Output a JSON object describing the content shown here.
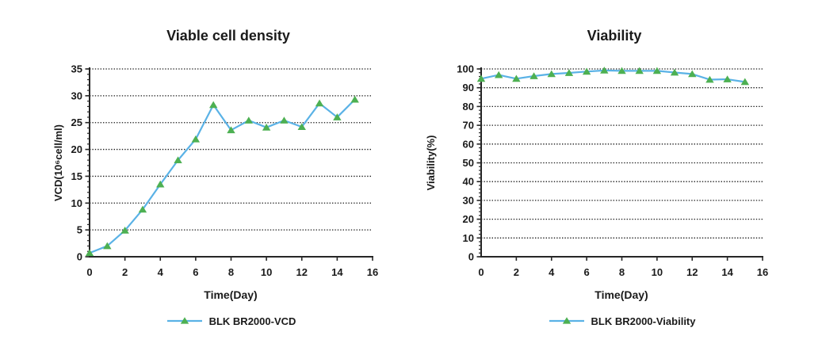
{
  "page": {
    "background": "#ffffff"
  },
  "colors": {
    "axis": "#262626",
    "grid": "#1a1a1a",
    "text": "#1a1a1a"
  },
  "chart_data": [
    {
      "type": "line",
      "title": "Viable cell density",
      "xlabel": "Time(Day)",
      "ylabel": "VCD(10⁶cell/ml)",
      "legend": "BLK BR2000-VCD",
      "x": [
        0,
        1,
        2,
        3,
        4,
        5,
        6,
        7,
        8,
        9,
        10,
        11,
        12,
        13,
        14,
        15
      ],
      "values": [
        0.7,
        2.0,
        4.9,
        8.8,
        13.5,
        18.0,
        21.9,
        28.3,
        23.6,
        25.4,
        24.1,
        25.4,
        24.2,
        28.6,
        26.0,
        29.3
      ],
      "xlim": [
        0,
        16
      ],
      "ylim": [
        0,
        35
      ],
      "xticks": [
        0,
        2,
        4,
        6,
        8,
        10,
        12,
        14,
        16
      ],
      "yticks": [
        0,
        5,
        10,
        15,
        20,
        25,
        30,
        35
      ],
      "y_minor_step": 1,
      "grid": "horizontal-dotted",
      "legend_position": "bottom",
      "line_color": "#5AB2E6",
      "marker_color": "#4DB052",
      "marker": "triangle-up"
    },
    {
      "type": "line",
      "title": "Viability",
      "xlabel": "Time(Day)",
      "ylabel": "Viability(%)",
      "legend": "BLK BR2000-Viability",
      "x": [
        0,
        1,
        2,
        3,
        4,
        5,
        6,
        7,
        8,
        9,
        10,
        11,
        12,
        13,
        14,
        15
      ],
      "values": [
        94.8,
        96.8,
        94.8,
        96.2,
        97.3,
        97.9,
        98.6,
        99.2,
        99.0,
        99.0,
        99.0,
        98.1,
        97.3,
        94.3,
        94.5,
        93.1
      ],
      "xlim": [
        0,
        16
      ],
      "ylim": [
        0,
        100
      ],
      "xticks": [
        0,
        2,
        4,
        6,
        8,
        10,
        12,
        14,
        16
      ],
      "yticks": [
        0,
        10,
        20,
        30,
        40,
        50,
        60,
        70,
        80,
        90,
        100
      ],
      "y_minor_step": 2,
      "grid": "horizontal-dotted",
      "legend_position": "bottom",
      "line_color": "#5AB2E6",
      "marker_color": "#4DB052",
      "marker": "triangle-up"
    }
  ]
}
